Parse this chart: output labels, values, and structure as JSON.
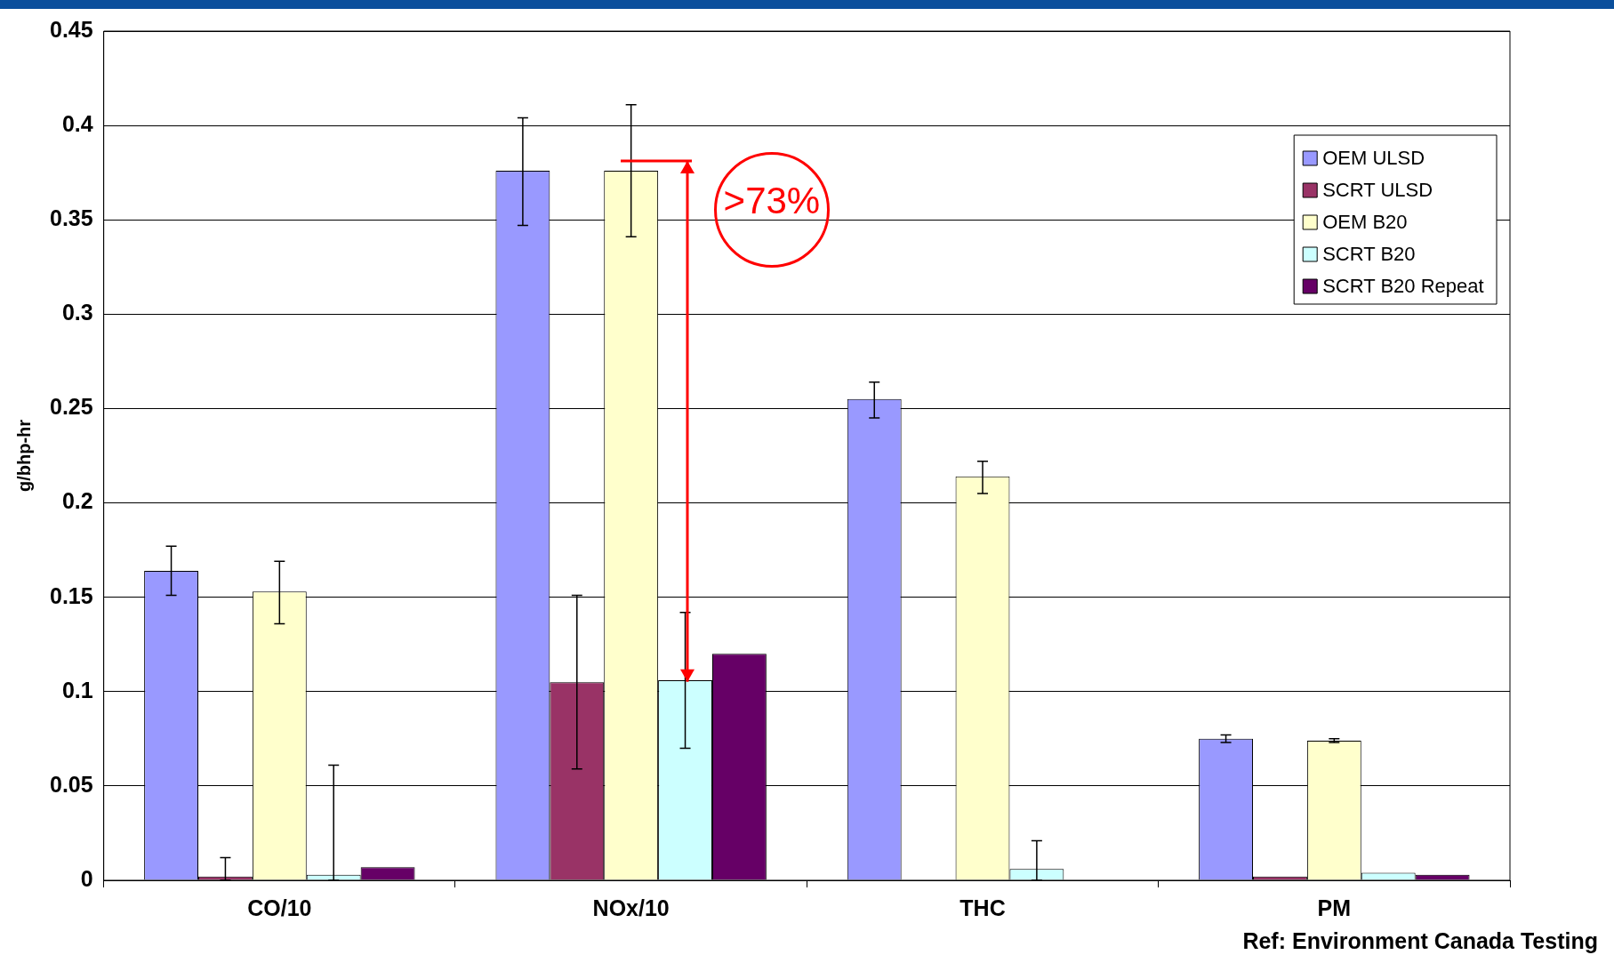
{
  "chart_data": {
    "type": "bar",
    "ylabel": "g/bhp-hr",
    "categories": [
      "CO/10",
      "NOx/10",
      "THC",
      "PM"
    ],
    "series": [
      {
        "name": "OEM ULSD",
        "color": "#9999ff",
        "values": [
          0.164,
          0.376,
          0.255,
          0.075
        ],
        "errors": [
          [
            0.151,
            0.177
          ],
          [
            0.347,
            0.404
          ],
          [
            0.245,
            0.264
          ],
          [
            0.073,
            0.077
          ]
        ]
      },
      {
        "name": "SCRT ULSD",
        "color": "#993366",
        "values": [
          0.002,
          0.105,
          0,
          0.002
        ],
        "errors": [
          [
            0,
            0.012
          ],
          [
            0.059,
            0.151
          ],
          null,
          null
        ]
      },
      {
        "name": "OEM B20",
        "color": "#ffffcc",
        "values": [
          0.153,
          0.376,
          0.214,
          0.074
        ],
        "errors": [
          [
            0.136,
            0.169
          ],
          [
            0.341,
            0.411
          ],
          [
            0.205,
            0.222
          ],
          [
            0.073,
            0.075
          ]
        ]
      },
      {
        "name": "SCRT B20",
        "color": "#ccffff",
        "values": [
          0.003,
          0.106,
          0.006,
          0.004
        ],
        "errors": [
          [
            0,
            0.061
          ],
          [
            0.07,
            0.142
          ],
          [
            0,
            0.021
          ],
          null
        ]
      },
      {
        "name": "SCRT B20 Repeat",
        "color": "#660066",
        "values": [
          0.007,
          0.12,
          null,
          0.003
        ]
      }
    ],
    "ylim": [
      0,
      0.45
    ],
    "yticks": [
      0,
      0.05,
      0.1,
      0.15,
      0.2,
      0.25,
      0.3,
      0.35,
      0.4,
      0.45
    ],
    "grid": "y",
    "legend": "top right",
    "annotations": [
      {
        "text": ">73%",
        "x": "NOx/10",
        "y": 0.381
      },
      "Ref: Environment Canada Testing"
    ]
  }
}
